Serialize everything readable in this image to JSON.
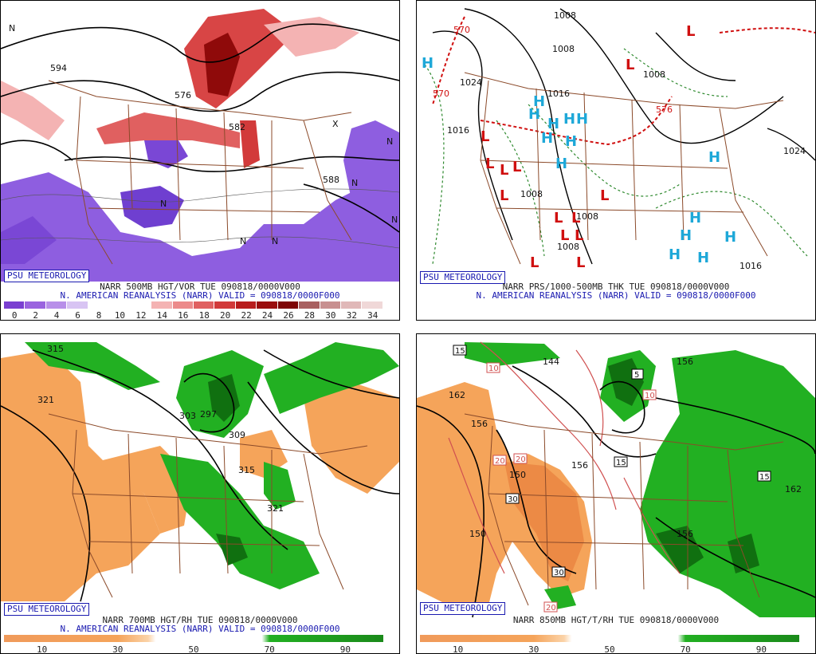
{
  "panels": {
    "top_left": {
      "badge": "PSU METEOROLOGY",
      "line1": "NARR 500MB HGT/VOR TUE 090818/0000V000",
      "line2": "N. AMERICAN REANALYSIS (NARR) VALID = 090818/0000F000",
      "colorbar_labels": [
        "0",
        "2",
        "4",
        "6",
        "8",
        "10",
        "12",
        "14",
        "16",
        "18",
        "20",
        "22",
        "24",
        "26",
        "28",
        "30",
        "32",
        "34"
      ],
      "colorbar_colors": [
        "#7a3fd1",
        "#9a63df",
        "#b88fe9",
        "#d8c4f3",
        "#ffffff",
        "#ffffff",
        "#ffffff",
        "#f4b3b3",
        "#ec8a8a",
        "#e06060",
        "#d23a3a",
        "#b81d1d",
        "#9a0e0e",
        "#7e0505",
        "#a86060",
        "#c89090",
        "#e0b8b8",
        "#f0d8d8"
      ],
      "map_labels": [
        "594",
        "576",
        "582",
        "588",
        "N",
        "N",
        "N",
        "N",
        "N",
        "N",
        "N",
        "X"
      ]
    },
    "top_right": {
      "badge": "PSU METEOROLOGY",
      "line1": "NARR PRS/1000-500MB THK TUE 090818/0000V000",
      "line2": "N. AMERICAN REANALYSIS (NARR) VALID = 090818/0000F000",
      "map_labels": [
        "1008",
        "1024",
        "1016",
        "1016",
        "1008",
        "1008",
        "1024",
        "1016",
        "1008",
        "1008",
        "1008",
        "570",
        "570",
        "576",
        "L",
        "H"
      ]
    },
    "bottom_left": {
      "badge": "PSU METEOROLOGY",
      "line1": "NARR 700MB HGT/RH TUE 090818/0000V000",
      "line2": "N. AMERICAN REANALYSIS (NARR) VALID = 090818/0000F000",
      "colorbar_labels": [
        "10",
        "30",
        "50",
        "70",
        "90"
      ],
      "map_labels": [
        "315",
        "321",
        "303",
        "297",
        "309",
        "315",
        "321"
      ]
    },
    "bottom_right": {
      "line1": "NARR 850MB HGT/T/RH TUE 090818/0000V000",
      "badge": "PSU METEOROLOGY",
      "colorbar_labels": [
        "10",
        "30",
        "50",
        "70",
        "90"
      ],
      "map_labels": [
        "144",
        "162",
        "156",
        "150",
        "150",
        "156",
        "156",
        "162",
        "156"
      ],
      "temp_boxes": [
        "15",
        "10",
        "5",
        "10",
        "20",
        "30",
        "20",
        "30",
        "15",
        "15",
        "20"
      ]
    }
  }
}
